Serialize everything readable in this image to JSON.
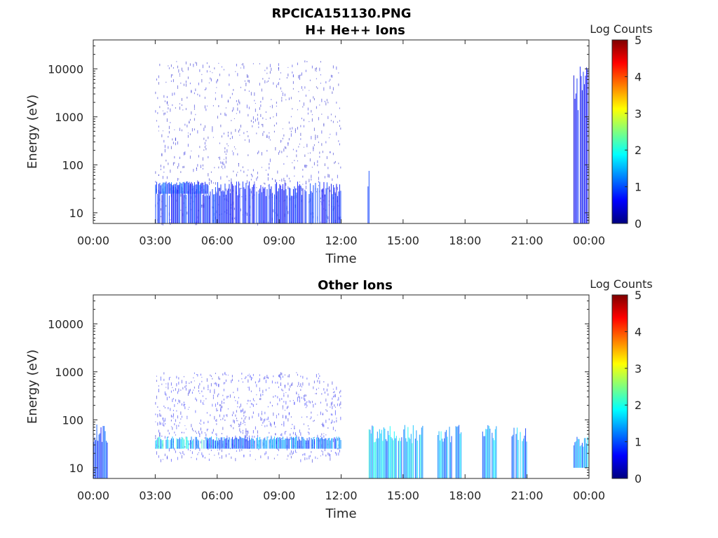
{
  "figure": {
    "title": "RPCICA151130.PNG"
  },
  "colors": {
    "jet": [
      "#00007f",
      "#0000ff",
      "#007fff",
      "#00ffff",
      "#7fff7f",
      "#ffff00",
      "#ff7f00",
      "#ff0000",
      "#7f0000"
    ],
    "axis": "#262626"
  },
  "chart_data": [
    {
      "type": "heatmap",
      "title": "H+ He++ Ions",
      "xlabel": "Time",
      "ylabel": "Energy (eV)",
      "x_scale": "time",
      "y_scale": "log",
      "xlim": [
        "00:00",
        "24:00"
      ],
      "ylim": [
        6,
        40000
      ],
      "x_ticks": [
        "00:00",
        "03:00",
        "06:00",
        "09:00",
        "12:00",
        "15:00",
        "18:00",
        "21:00",
        "00:00"
      ],
      "y_ticks": [
        "10",
        "100",
        "1000",
        "10000"
      ],
      "colorbar": {
        "label": "Log Counts",
        "range": [
          0,
          5
        ],
        "ticks": [
          "0",
          "1",
          "2",
          "3",
          "4",
          "5"
        ]
      },
      "regions": [
        {
          "t_start": "03:00",
          "t_end": "12:00",
          "e_min": 6,
          "e_max": 15000,
          "log_counts": 0.4,
          "note": "sparse"
        },
        {
          "t_start": "03:00",
          "t_end": "12:00",
          "e_min": 6,
          "e_max": 45,
          "log_counts": 0.8
        },
        {
          "t_start": "03:00",
          "t_end": "05:30",
          "e_min": 25,
          "e_max": 45,
          "log_counts": 1.0
        },
        {
          "t_start": "13:17",
          "t_end": "13:22",
          "e_min": 6,
          "e_max": 80,
          "log_counts": 0.8
        },
        {
          "t_start": "23:15",
          "t_end": "23:55",
          "e_min": 6,
          "e_max": 12000,
          "log_counts": 0.7
        }
      ]
    },
    {
      "type": "heatmap",
      "title": "Other Ions",
      "xlabel": "Time",
      "ylabel": "Energy (eV)",
      "x_scale": "time",
      "y_scale": "log",
      "xlim": [
        "00:00",
        "24:00"
      ],
      "ylim": [
        6,
        40000
      ],
      "x_ticks": [
        "00:00",
        "03:00",
        "06:00",
        "09:00",
        "12:00",
        "15:00",
        "18:00",
        "21:00",
        "00:00"
      ],
      "y_ticks": [
        "10",
        "100",
        "1000",
        "10000"
      ],
      "colorbar": {
        "label": "Log Counts",
        "range": [
          0,
          5
        ],
        "ticks": [
          "0",
          "1",
          "2",
          "3",
          "4",
          "5"
        ]
      },
      "regions": [
        {
          "t_start": "00:00",
          "t_end": "00:40",
          "e_min": 6,
          "e_max": 80,
          "log_counts": 1.0
        },
        {
          "t_start": "03:00",
          "t_end": "12:00",
          "e_min": 15,
          "e_max": 1000,
          "log_counts": 0.6,
          "note": "sparse"
        },
        {
          "t_start": "03:00",
          "t_end": "05:30",
          "e_min": 25,
          "e_max": 45,
          "log_counts": 1.8
        },
        {
          "t_start": "05:30",
          "t_end": "12:00",
          "e_min": 25,
          "e_max": 45,
          "log_counts": 1.3
        },
        {
          "t_start": "13:20",
          "t_end": "16:00",
          "e_min": 6,
          "e_max": 80,
          "log_counts": 1.7
        },
        {
          "t_start": "16:40",
          "t_end": "17:50",
          "e_min": 6,
          "e_max": 80,
          "log_counts": 1.6
        },
        {
          "t_start": "18:50",
          "t_end": "19:30",
          "e_min": 6,
          "e_max": 80,
          "log_counts": 1.6
        },
        {
          "t_start": "20:15",
          "t_end": "21:00",
          "e_min": 6,
          "e_max": 80,
          "log_counts": 1.5
        },
        {
          "t_start": "23:15",
          "t_end": "23:55",
          "e_min": 10,
          "e_max": 45,
          "log_counts": 1.5
        }
      ]
    }
  ]
}
